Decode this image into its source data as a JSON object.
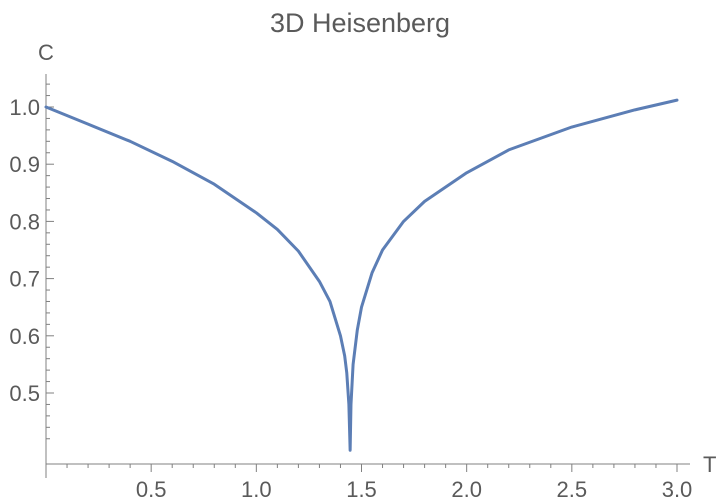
{
  "chart_data": {
    "type": "line",
    "title": "3D Heisenberg",
    "xlabel": "T",
    "ylabel": "C",
    "xlim": [
      0,
      3.0
    ],
    "ylim": [
      0.4,
      1.05
    ],
    "x_ticks": [
      0.5,
      1.0,
      1.5,
      2.0,
      2.5,
      3.0
    ],
    "x_tick_labels": [
      "0.5",
      "1.0",
      "1.5",
      "2.0",
      "2.5",
      "3.0"
    ],
    "y_ticks": [
      0.5,
      0.6,
      0.7,
      0.8,
      0.9,
      1.0
    ],
    "y_tick_labels": [
      "0.5",
      "0.6",
      "0.7",
      "0.8",
      "0.9",
      "1.0"
    ],
    "grid": false,
    "series": [
      {
        "color": "#5c7eb5",
        "x": [
          0.0,
          0.2,
          0.4,
          0.6,
          0.8,
          1.0,
          1.1,
          1.2,
          1.3,
          1.35,
          1.4,
          1.42,
          1.43,
          1.44,
          1.443,
          1.446,
          1.45,
          1.46,
          1.48,
          1.5,
          1.55,
          1.6,
          1.7,
          1.8,
          2.0,
          2.2,
          2.5,
          2.8,
          3.0
        ],
        "y": [
          1.0,
          0.97,
          0.94,
          0.905,
          0.865,
          0.815,
          0.786,
          0.748,
          0.695,
          0.66,
          0.6,
          0.565,
          0.535,
          0.48,
          0.44,
          0.4,
          0.48,
          0.55,
          0.61,
          0.65,
          0.71,
          0.75,
          0.8,
          0.835,
          0.885,
          0.925,
          0.965,
          0.995,
          1.012
        ]
      }
    ]
  }
}
